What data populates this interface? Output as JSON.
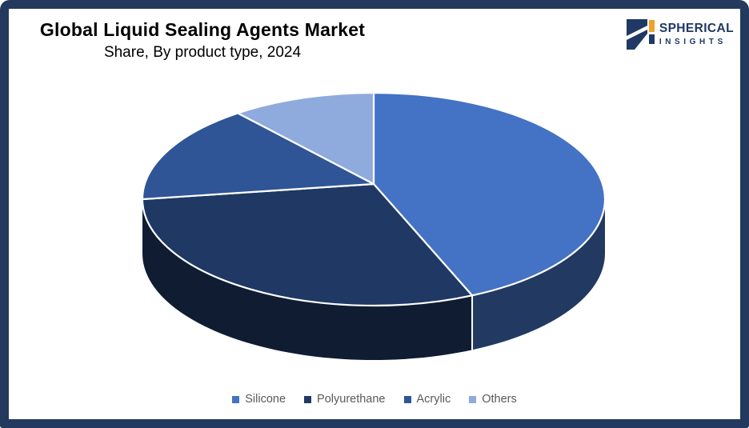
{
  "frame": {
    "border_color": "#24395E",
    "background_color": "#FFFFFF"
  },
  "header": {
    "title": "Global Liquid Sealing Agents Market",
    "subtitle": "Share, By product type, 2024"
  },
  "logo": {
    "brand_line1": "SPHERICAL",
    "brand_line2": "INSIGHTS",
    "navy": "#1F3864",
    "orange": "#F0A22C"
  },
  "chart_data": {
    "type": "pie",
    "title": "Global Liquid Sealing Agents Market Share, By product type, 2024",
    "unit": "%",
    "labels": [
      "Silicone",
      "Polyurethane",
      "Acrylic",
      "Others"
    ],
    "values": [
      43,
      32,
      15,
      10
    ],
    "colors": [
      "#4472C4",
      "#1F3864",
      "#2F5597",
      "#8FAADC"
    ],
    "effect": "3d",
    "start_angle_deg": 0,
    "direction": "clockwise",
    "value_labels_shown": false,
    "legend_position": "bottom",
    "legend_text_color": "#595959",
    "slice_outline_color": "#FFFFFF"
  }
}
